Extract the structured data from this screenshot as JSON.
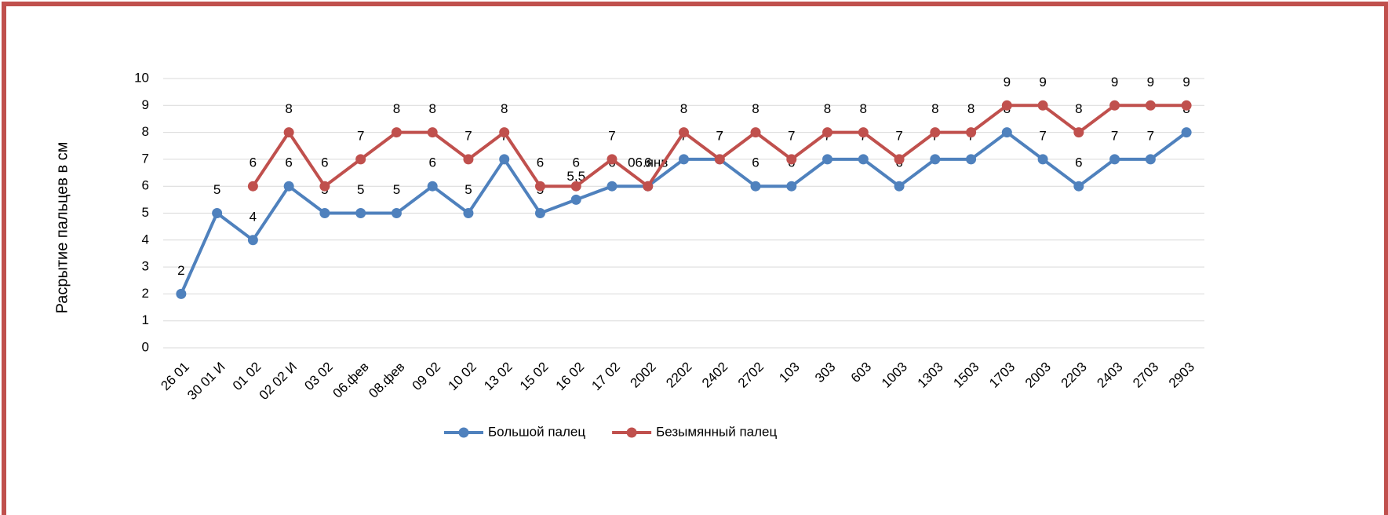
{
  "chart_data": {
    "type": "line",
    "y_label": "Расрытие пальцев в см",
    "categories": [
      "26 01",
      "30 01 И",
      "01 02",
      "02 02 И",
      "03 02",
      "06.фев",
      "08.фев",
      "09 02",
      "10 02",
      "13 02",
      "15 02",
      "16 02",
      "17 02",
      "2002",
      "2202",
      "2402",
      "2702",
      "103",
      "303",
      "603",
      "1003",
      "1303",
      "1503",
      "1703",
      "2003",
      "2203",
      "2403",
      "2703",
      "2903"
    ],
    "series": [
      {
        "name": "Большой палец",
        "color": "#4f81bd",
        "values": [
          2,
          5,
          4,
          6,
          5,
          5,
          5,
          6,
          5,
          7,
          5,
          5.5,
          6,
          6,
          7,
          7,
          6,
          6,
          7,
          7,
          6,
          7,
          7,
          8,
          7,
          6,
          7,
          7,
          8
        ],
        "value_labels": [
          "2",
          "5",
          "4",
          "6",
          "5",
          "5",
          "5",
          "6",
          "5",
          "7",
          "5",
          "5,5",
          "6",
          "06.янв",
          "7",
          "7",
          "6",
          "6",
          "7",
          "7",
          "6",
          "7",
          "7",
          "8",
          "7",
          "6",
          "7",
          "7",
          "8"
        ]
      },
      {
        "name": "Безымянный палец",
        "color": "#c0504d",
        "values": [
          null,
          null,
          6,
          8,
          6,
          7,
          8,
          8,
          7,
          8,
          6,
          6,
          7,
          6,
          8,
          7,
          8,
          7,
          8,
          8,
          7,
          8,
          8,
          9,
          9,
          8,
          9,
          9,
          9
        ]
      }
    ],
    "ylim": [
      0,
      10
    ],
    "yticks": [
      0,
      1,
      2,
      3,
      4,
      5,
      6,
      7,
      8,
      9,
      10
    ],
    "grid": true,
    "legend": "bottom"
  }
}
